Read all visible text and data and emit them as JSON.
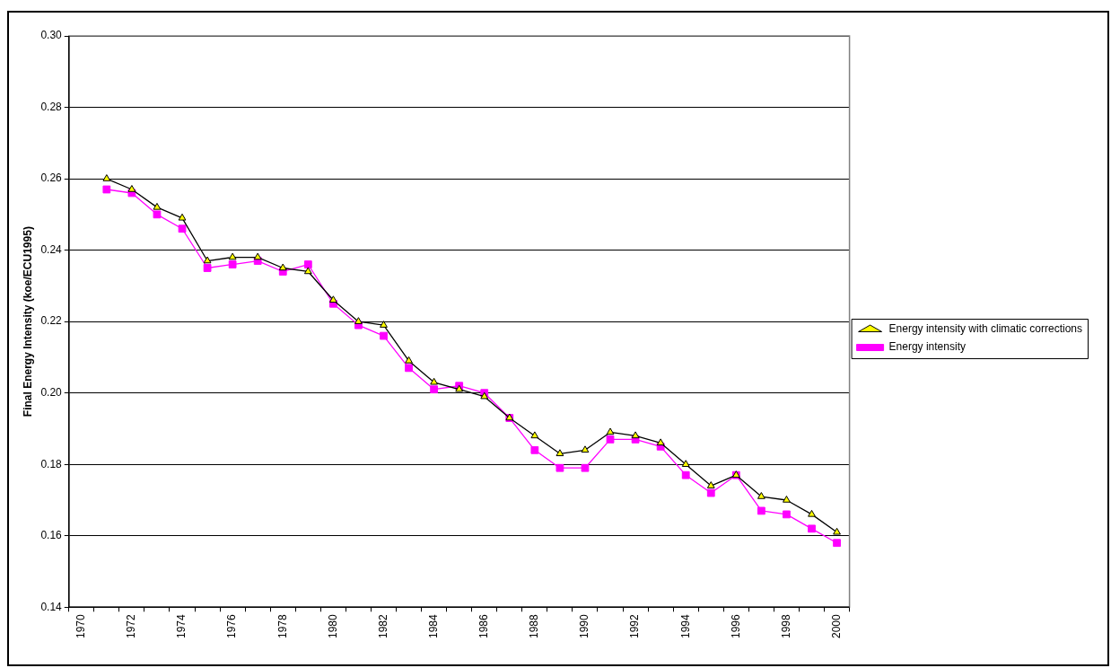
{
  "chart_data": {
    "type": "line",
    "ylabel": "Final Energy Intensity (koe/ECU1995)",
    "categories": [
      "1970",
      null,
      "1972",
      null,
      "1974",
      null,
      "1976",
      null,
      "1978",
      null,
      "1980",
      null,
      "1982",
      null,
      "1984",
      null,
      "1986",
      null,
      "1988",
      null,
      "1990",
      null,
      "1992",
      null,
      "1994",
      null,
      "1996",
      null,
      "1998",
      null,
      "2000"
    ],
    "series": [
      {
        "name": "Energy intensity",
        "color": "#ff00ff",
        "marker": "square",
        "values": [
          null,
          0.257,
          0.256,
          0.25,
          0.246,
          0.235,
          0.236,
          0.237,
          0.234,
          0.236,
          0.225,
          0.219,
          0.216,
          0.207,
          0.201,
          0.202,
          0.2,
          0.193,
          0.184,
          0.179,
          0.179,
          0.187,
          0.187,
          0.185,
          0.177,
          0.172,
          0.177,
          0.167,
          0.166,
          0.162,
          0.158
        ]
      },
      {
        "name": "Energy intensity with climatic corrections",
        "color": "#000000",
        "marker": "triangle",
        "values": [
          null,
          0.26,
          0.257,
          0.252,
          0.249,
          0.237,
          0.238,
          0.238,
          0.235,
          0.234,
          0.226,
          0.22,
          0.219,
          0.209,
          0.203,
          0.201,
          0.199,
          0.193,
          0.188,
          0.183,
          0.184,
          0.189,
          0.188,
          0.186,
          0.18,
          0.174,
          0.177,
          0.171,
          0.17,
          0.166,
          0.161
        ]
      }
    ],
    "ylim": [
      0.14,
      0.3
    ],
    "yticks": [
      0.14,
      0.16,
      0.18,
      {
        "value": 0.2,
        "label": "0.20"
      },
      0.22,
      0.24,
      0.26,
      0.28,
      {
        "value": 0.3,
        "label": "0.30"
      }
    ],
    "grid": "y",
    "legend": "right"
  }
}
